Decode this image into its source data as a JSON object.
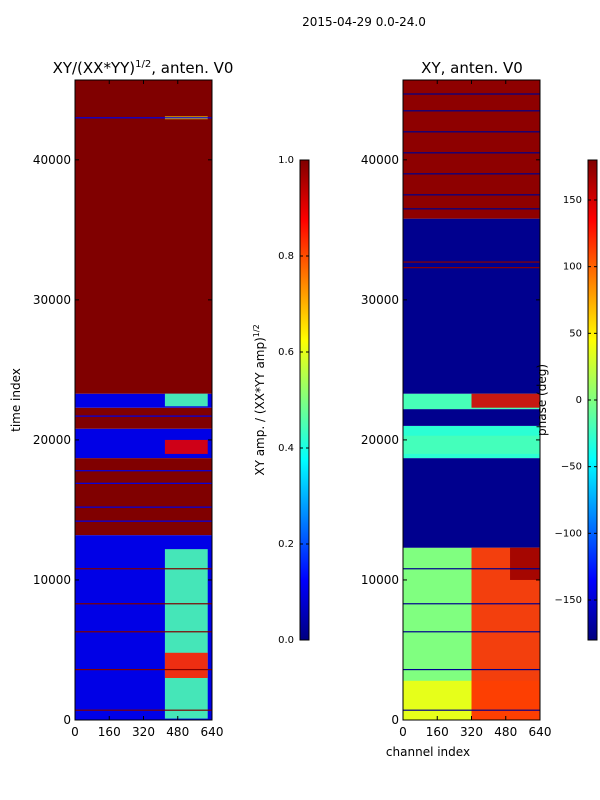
{
  "figure": {
    "suptitle": "2015-04-29 0.0-24.0"
  },
  "chart_data": [
    {
      "type": "heatmap",
      "title": "XY/(XX*YY)$^{1/2}$, anten. V0",
      "title_main": "XY/(XX*YY)",
      "title_sup": "1/2",
      "title_tail": ", anten. V0",
      "xlabel": "",
      "ylabel": "time index",
      "xlim": [
        0,
        640
      ],
      "ylim": [
        0,
        45700
      ],
      "xticks": [
        0,
        160,
        320,
        480,
        640
      ],
      "yticks": [
        0,
        10000,
        20000,
        30000,
        40000
      ],
      "colorbar": {
        "label_main": "XY amp. / (XX*YY amp)",
        "label_sup": "1/2",
        "vmin": 0.0,
        "vmax": 1.0,
        "ticks": [
          0.0,
          0.2,
          0.4,
          0.6,
          0.8,
          1.0
        ],
        "tick_labels": [
          "0.0",
          "0.2",
          "0.4",
          "0.6",
          "0.8",
          "1.0"
        ]
      },
      "bands": [
        {
          "y0": 0,
          "y1": 13200,
          "value": 0.1
        },
        {
          "y0": 13200,
          "y1": 18700,
          "value": 1.0
        },
        {
          "y0": 18700,
          "y1": 20800,
          "value": 0.1
        },
        {
          "y0": 20800,
          "y1": 22300,
          "value": 1.0
        },
        {
          "y0": 22300,
          "y1": 23300,
          "value": 0.1
        },
        {
          "y0": 23300,
          "y1": 45700,
          "value": 1.0
        }
      ],
      "lines": [
        {
          "y": 43000,
          "value": 0.1
        },
        {
          "y": 21700,
          "value": 0.1
        },
        {
          "y": 20200,
          "value": 0.1
        },
        {
          "y": 17800,
          "value": 0.1
        },
        {
          "y": 16900,
          "value": 0.1
        },
        {
          "y": 15200,
          "value": 0.1
        },
        {
          "y": 14200,
          "value": 0.1
        },
        {
          "y": 12500,
          "value": 0.1
        },
        {
          "y": 10800,
          "value": 1.0
        },
        {
          "y": 8300,
          "value": 1.0
        },
        {
          "y": 6300,
          "value": 1.0
        },
        {
          "y": 3600,
          "value": 1.0
        },
        {
          "y": 700,
          "value": 1.0
        }
      ],
      "patches": [
        {
          "x0": 420,
          "x1": 620,
          "y0": 100,
          "y1": 12200,
          "value": 0.45
        },
        {
          "x0": 420,
          "x1": 620,
          "y0": 3000,
          "y1": 4800,
          "value": 0.85
        },
        {
          "x0": 420,
          "x1": 620,
          "y0": 19000,
          "y1": 20000,
          "value": 0.9
        },
        {
          "x0": 420,
          "x1": 620,
          "y0": 22400,
          "y1": 23300,
          "value": 0.45
        },
        {
          "x0": 420,
          "x1": 620,
          "y0": 42900,
          "y1": 43100,
          "value": 0.65
        }
      ]
    },
    {
      "type": "heatmap",
      "title": "XY, anten. V0",
      "xlabel": "channel index",
      "ylabel": "",
      "xlim": [
        0,
        640
      ],
      "ylim": [
        0,
        45700
      ],
      "xticks": [
        0,
        160,
        320,
        480,
        640
      ],
      "yticks": [
        0,
        10000,
        20000,
        30000,
        40000
      ],
      "colorbar": {
        "label": "phase (deg)",
        "vmin": -180,
        "vmax": 180,
        "ticks": [
          -150,
          -100,
          -50,
          0,
          50,
          100,
          150
        ],
        "tick_labels": [
          "−150",
          "−100",
          "−50",
          "0",
          "50",
          "100",
          "150"
        ]
      },
      "bands": [
        {
          "y0": 0,
          "y1": 12300,
          "value": 0
        },
        {
          "y0": 12300,
          "y1": 18700,
          "value": -175
        },
        {
          "y0": 18700,
          "y1": 21000,
          "value": -30
        },
        {
          "y0": 21000,
          "y1": 22200,
          "value": -175
        },
        {
          "y0": 22200,
          "y1": 23300,
          "value": -20
        },
        {
          "y0": 23300,
          "y1": 35800,
          "value": -175
        },
        {
          "y0": 35800,
          "y1": 45700,
          "value": 175
        }
      ],
      "lines": [
        {
          "y": 44700,
          "value": -175
        },
        {
          "y": 43500,
          "value": -175
        },
        {
          "y": 42000,
          "value": -175
        },
        {
          "y": 40500,
          "value": -175
        },
        {
          "y": 39000,
          "value": -175
        },
        {
          "y": 37500,
          "value": -175
        },
        {
          "y": 36500,
          "value": -175
        },
        {
          "y": 32700,
          "value": 175
        },
        {
          "y": 32300,
          "value": 175
        },
        {
          "y": 10800,
          "value": -175
        },
        {
          "y": 8300,
          "value": -175
        },
        {
          "y": 6300,
          "value": -175
        },
        {
          "y": 3600,
          "value": -175
        },
        {
          "y": 700,
          "value": -175
        }
      ],
      "patches": [
        {
          "x0": 0,
          "x1": 640,
          "y0": 0,
          "y1": 2800,
          "value": 40
        },
        {
          "x0": 320,
          "x1": 640,
          "y0": 0,
          "y1": 12300,
          "value": 120
        },
        {
          "x0": 500,
          "x1": 640,
          "y0": 10000,
          "y1": 12300,
          "value": 170
        },
        {
          "x0": 320,
          "x1": 640,
          "y0": 22300,
          "y1": 23300,
          "value": 150
        },
        {
          "x0": 0,
          "x1": 640,
          "y0": 19000,
          "y1": 20300,
          "value": -20
        }
      ]
    }
  ]
}
